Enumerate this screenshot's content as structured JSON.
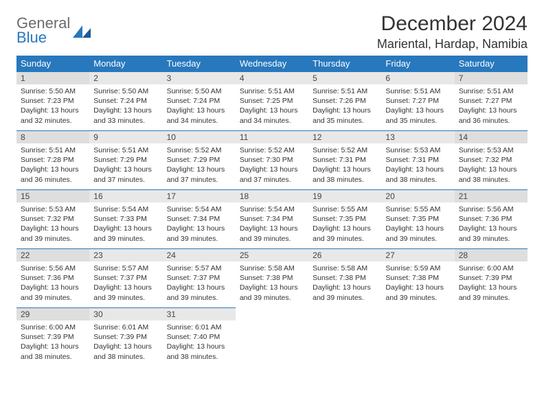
{
  "logo": {
    "general": "General",
    "blue": "Blue"
  },
  "title": "December 2024",
  "location": "Mariental, Hardap, Namibia",
  "colors": {
    "header_bg": "#2878bd",
    "header_text": "#ffffff",
    "daynum_bg": "#e8e8e8",
    "daynum_weekend_bg": "#dedede",
    "border": "#2878bd",
    "logo_gray": "#6b6b6b",
    "logo_blue": "#2878bd"
  },
  "day_headers": [
    "Sunday",
    "Monday",
    "Tuesday",
    "Wednesday",
    "Thursday",
    "Friday",
    "Saturday"
  ],
  "days": [
    {
      "n": 1,
      "sr": "5:50 AM",
      "ss": "7:23 PM",
      "dl": "13 hours and 32 minutes."
    },
    {
      "n": 2,
      "sr": "5:50 AM",
      "ss": "7:24 PM",
      "dl": "13 hours and 33 minutes."
    },
    {
      "n": 3,
      "sr": "5:50 AM",
      "ss": "7:24 PM",
      "dl": "13 hours and 34 minutes."
    },
    {
      "n": 4,
      "sr": "5:51 AM",
      "ss": "7:25 PM",
      "dl": "13 hours and 34 minutes."
    },
    {
      "n": 5,
      "sr": "5:51 AM",
      "ss": "7:26 PM",
      "dl": "13 hours and 35 minutes."
    },
    {
      "n": 6,
      "sr": "5:51 AM",
      "ss": "7:27 PM",
      "dl": "13 hours and 35 minutes."
    },
    {
      "n": 7,
      "sr": "5:51 AM",
      "ss": "7:27 PM",
      "dl": "13 hours and 36 minutes."
    },
    {
      "n": 8,
      "sr": "5:51 AM",
      "ss": "7:28 PM",
      "dl": "13 hours and 36 minutes."
    },
    {
      "n": 9,
      "sr": "5:51 AM",
      "ss": "7:29 PM",
      "dl": "13 hours and 37 minutes."
    },
    {
      "n": 10,
      "sr": "5:52 AM",
      "ss": "7:29 PM",
      "dl": "13 hours and 37 minutes."
    },
    {
      "n": 11,
      "sr": "5:52 AM",
      "ss": "7:30 PM",
      "dl": "13 hours and 37 minutes."
    },
    {
      "n": 12,
      "sr": "5:52 AM",
      "ss": "7:31 PM",
      "dl": "13 hours and 38 minutes."
    },
    {
      "n": 13,
      "sr": "5:53 AM",
      "ss": "7:31 PM",
      "dl": "13 hours and 38 minutes."
    },
    {
      "n": 14,
      "sr": "5:53 AM",
      "ss": "7:32 PM",
      "dl": "13 hours and 38 minutes."
    },
    {
      "n": 15,
      "sr": "5:53 AM",
      "ss": "7:32 PM",
      "dl": "13 hours and 39 minutes."
    },
    {
      "n": 16,
      "sr": "5:54 AM",
      "ss": "7:33 PM",
      "dl": "13 hours and 39 minutes."
    },
    {
      "n": 17,
      "sr": "5:54 AM",
      "ss": "7:34 PM",
      "dl": "13 hours and 39 minutes."
    },
    {
      "n": 18,
      "sr": "5:54 AM",
      "ss": "7:34 PM",
      "dl": "13 hours and 39 minutes."
    },
    {
      "n": 19,
      "sr": "5:55 AM",
      "ss": "7:35 PM",
      "dl": "13 hours and 39 minutes."
    },
    {
      "n": 20,
      "sr": "5:55 AM",
      "ss": "7:35 PM",
      "dl": "13 hours and 39 minutes."
    },
    {
      "n": 21,
      "sr": "5:56 AM",
      "ss": "7:36 PM",
      "dl": "13 hours and 39 minutes."
    },
    {
      "n": 22,
      "sr": "5:56 AM",
      "ss": "7:36 PM",
      "dl": "13 hours and 39 minutes."
    },
    {
      "n": 23,
      "sr": "5:57 AM",
      "ss": "7:37 PM",
      "dl": "13 hours and 39 minutes."
    },
    {
      "n": 24,
      "sr": "5:57 AM",
      "ss": "7:37 PM",
      "dl": "13 hours and 39 minutes."
    },
    {
      "n": 25,
      "sr": "5:58 AM",
      "ss": "7:38 PM",
      "dl": "13 hours and 39 minutes."
    },
    {
      "n": 26,
      "sr": "5:58 AM",
      "ss": "7:38 PM",
      "dl": "13 hours and 39 minutes."
    },
    {
      "n": 27,
      "sr": "5:59 AM",
      "ss": "7:38 PM",
      "dl": "13 hours and 39 minutes."
    },
    {
      "n": 28,
      "sr": "6:00 AM",
      "ss": "7:39 PM",
      "dl": "13 hours and 39 minutes."
    },
    {
      "n": 29,
      "sr": "6:00 AM",
      "ss": "7:39 PM",
      "dl": "13 hours and 38 minutes."
    },
    {
      "n": 30,
      "sr": "6:01 AM",
      "ss": "7:39 PM",
      "dl": "13 hours and 38 minutes."
    },
    {
      "n": 31,
      "sr": "6:01 AM",
      "ss": "7:40 PM",
      "dl": "13 hours and 38 minutes."
    }
  ],
  "labels": {
    "sunrise": "Sunrise:",
    "sunset": "Sunset:",
    "daylight": "Daylight:"
  },
  "layout": {
    "columns": 7,
    "rows": 5,
    "start_weekday": 0
  }
}
